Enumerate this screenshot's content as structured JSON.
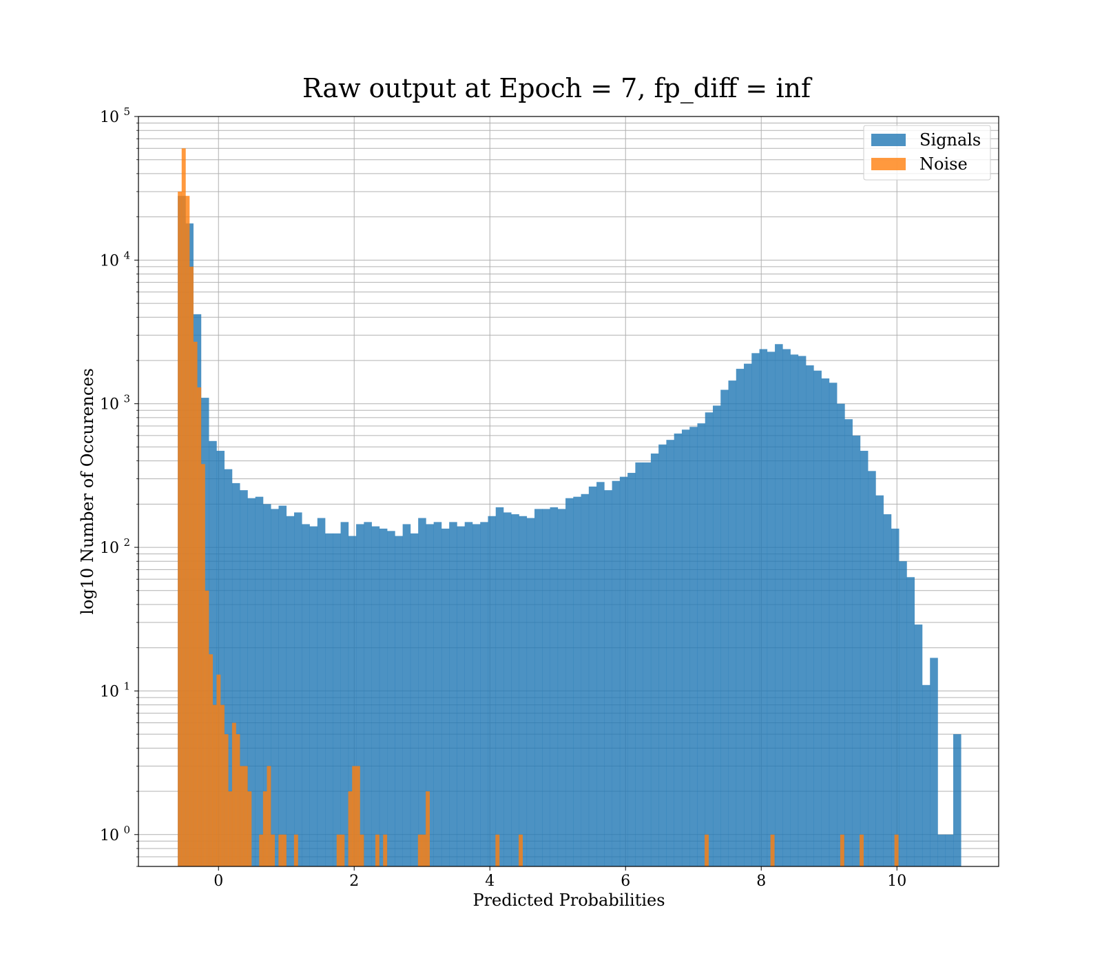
{
  "chart_data": {
    "type": "bar",
    "title": "Raw output at Epoch = 7, fp_diff = inf",
    "xlabel": "Predicted Probabilities",
    "ylabel": "log10 Number of Occurences",
    "xlim": [
      -1.18,
      11.5
    ],
    "ylim": [
      0.6,
      100000
    ],
    "yscale": "log",
    "grid": "on (major and minor)",
    "legend_placement": "top-right",
    "x_ticks": [
      0,
      2,
      4,
      6,
      8,
      10
    ],
    "x_tick_labels": [
      "0",
      "2",
      "4",
      "6",
      "8",
      "10"
    ],
    "y_ticks": [
      1,
      10,
      100,
      1000,
      10000,
      100000
    ],
    "y_tick_labels": [
      {
        "base": "10",
        "exp": "0"
      },
      {
        "base": "10",
        "exp": "1"
      },
      {
        "base": "10",
        "exp": "2"
      },
      {
        "base": "10",
        "exp": "3"
      },
      {
        "base": "10",
        "exp": "4"
      },
      {
        "base": "10",
        "exp": "5"
      }
    ],
    "series": [
      {
        "name": "Signals",
        "color": "#1f77b4",
        "opacity": 0.8,
        "bin_start": -0.6,
        "bin_width": 0.1143,
        "counts": [
          28000,
          18000,
          4200,
          1100,
          550,
          470,
          350,
          280,
          250,
          220,
          225,
          200,
          185,
          195,
          165,
          175,
          145,
          140,
          160,
          125,
          125,
          150,
          120,
          145,
          150,
          140,
          135,
          130,
          120,
          145,
          125,
          160,
          145,
          150,
          135,
          150,
          140,
          150,
          145,
          150,
          165,
          190,
          175,
          170,
          165,
          160,
          185,
          185,
          190,
          185,
          220,
          225,
          235,
          265,
          285,
          250,
          290,
          310,
          330,
          390,
          390,
          450,
          520,
          560,
          620,
          660,
          690,
          730,
          870,
          970,
          1250,
          1450,
          1750,
          1900,
          2250,
          2400,
          2300,
          2600,
          2400,
          2200,
          2150,
          1850,
          1700,
          1500,
          1400,
          1000,
          780,
          600,
          470,
          340,
          230,
          170,
          135,
          80,
          62,
          29,
          11,
          17,
          1,
          1,
          5
        ]
      },
      {
        "name": "Noise",
        "color": "#ff7f0e",
        "opacity": 0.8,
        "bin_start": -0.6,
        "bin_width": 0.0571,
        "counts": [
          30000,
          60000,
          28000,
          9000,
          2700,
          1300,
          380,
          50,
          18,
          8,
          13,
          8,
          5,
          2,
          6,
          5,
          3,
          3,
          2,
          0,
          0,
          1,
          2,
          3,
          1,
          0,
          1,
          1,
          0,
          0,
          1,
          0,
          0,
          0,
          0,
          0,
          0,
          0,
          0,
          0,
          0,
          1,
          1,
          0,
          2,
          3,
          3,
          1,
          0,
          0,
          0,
          1,
          0,
          1,
          0,
          0,
          0,
          0,
          0,
          0,
          0,
          0,
          1,
          1,
          2,
          0,
          0,
          0,
          0,
          0,
          0,
          0,
          0,
          0,
          0,
          0,
          0,
          0,
          0,
          0,
          0,
          0,
          1,
          0,
          0,
          0,
          0,
          0,
          1,
          0,
          0,
          0,
          0,
          0,
          0,
          0,
          0,
          0,
          0,
          0,
          0,
          0,
          0,
          0,
          0,
          0,
          0,
          0,
          0,
          0,
          0,
          0,
          0,
          0,
          0,
          0,
          0,
          0,
          0,
          0,
          0,
          0,
          0,
          0,
          0,
          0,
          0,
          0,
          0,
          0,
          0,
          0,
          0,
          0,
          0,
          0,
          1,
          0,
          0,
          0,
          0,
          0,
          0,
          0,
          0,
          0,
          0,
          0,
          0,
          0,
          0,
          0,
          0,
          1,
          0,
          0,
          0,
          0,
          0,
          0,
          0,
          0,
          0,
          0,
          0,
          0,
          0,
          0,
          0,
          0,
          0,
          1,
          0,
          0,
          0,
          0,
          1,
          0,
          0,
          0,
          0,
          0,
          0,
          0,
          0,
          1
        ]
      }
    ]
  }
}
